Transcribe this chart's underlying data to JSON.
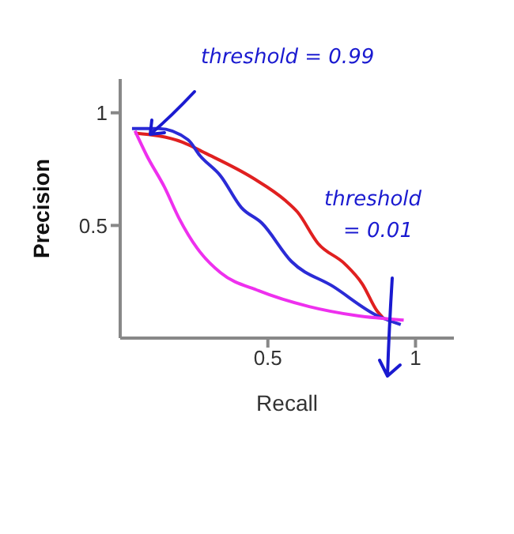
{
  "chart_data": {
    "type": "line",
    "xlabel": "Recall",
    "ylabel": "Precision",
    "xlim": [
      0,
      1.13
    ],
    "ylim": [
      0,
      1.15
    ],
    "xticks": [
      0.5,
      1
    ],
    "yticks": [
      0.5,
      1
    ],
    "grid": false,
    "marker": "none",
    "annotations": [
      "threshold = 0.99",
      "threshold = 0.01"
    ],
    "series": [
      {
        "color": "#e02020",
        "x": [
          0.05,
          0.21,
          0.29,
          0.45,
          0.56,
          0.6,
          0.67,
          0.76,
          0.82,
          0.87,
          0.89
        ],
        "values": [
          0.91,
          0.87,
          0.82,
          0.71,
          0.61,
          0.56,
          0.42,
          0.33,
          0.24,
          0.12,
          0.09
        ]
      },
      {
        "color": "#2b2bd6",
        "x": [
          0.04,
          0.13,
          0.23,
          0.27,
          0.34,
          0.41,
          0.48,
          0.58,
          0.72,
          0.87,
          0.95
        ],
        "values": [
          0.93,
          0.93,
          0.88,
          0.81,
          0.72,
          0.58,
          0.51,
          0.34,
          0.23,
          0.1,
          0.06
        ]
      },
      {
        "color": "#ee30ee",
        "x": [
          0.05,
          0.09,
          0.15,
          0.2,
          0.26,
          0.34,
          0.47,
          0.64,
          0.8,
          0.96
        ],
        "values": [
          0.92,
          0.81,
          0.67,
          0.53,
          0.4,
          0.29,
          0.21,
          0.14,
          0.1,
          0.08
        ]
      }
    ]
  }
}
